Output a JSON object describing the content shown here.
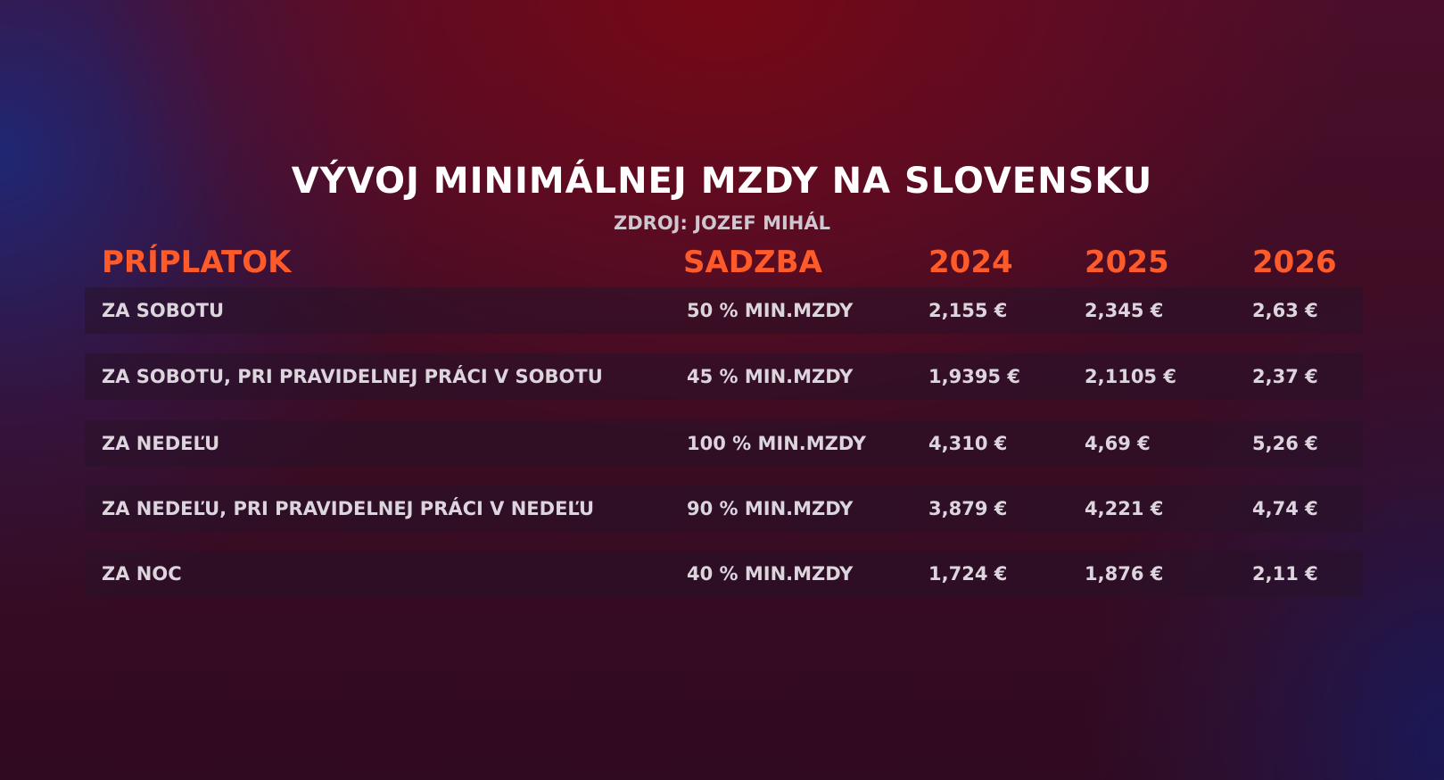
{
  "header": {
    "title": "VÝVOJ MINIMÁLNEJ MZDY NA SLOVENSKU",
    "source": "ZDROJ: JOZEF MIHÁL"
  },
  "table": {
    "columns": [
      "PRÍPLATOK",
      "SADZBA",
      "2024",
      "2025",
      "2026"
    ],
    "rows": [
      [
        "ZA SOBOTU",
        "50 % MIN.MZDY",
        "2,155 €",
        "2,345 €",
        "2,63 €"
      ],
      [
        "ZA SOBOTU, PRI PRAVIDELNEJ PRÁCI V SOBOTU",
        "45 % MIN.MZDY",
        "1,9395 €",
        "2,1105 €",
        "2,37 €"
      ],
      [
        "ZA NEDEĽU",
        "100 % MIN.MZDY",
        "4,310 €",
        "4,69 €",
        "5,26 €"
      ],
      [
        "ZA NEDEĽU, PRI PRAVIDELNEJ PRÁCI V NEDEĽU",
        "90 % MIN.MZDY",
        "3,879 €",
        "4,221 €",
        "4,74 €"
      ],
      [
        "ZA NOC",
        "40 % MIN.MZDY",
        "1,724 €",
        "1,876 €",
        "2,11 €"
      ]
    ]
  }
}
